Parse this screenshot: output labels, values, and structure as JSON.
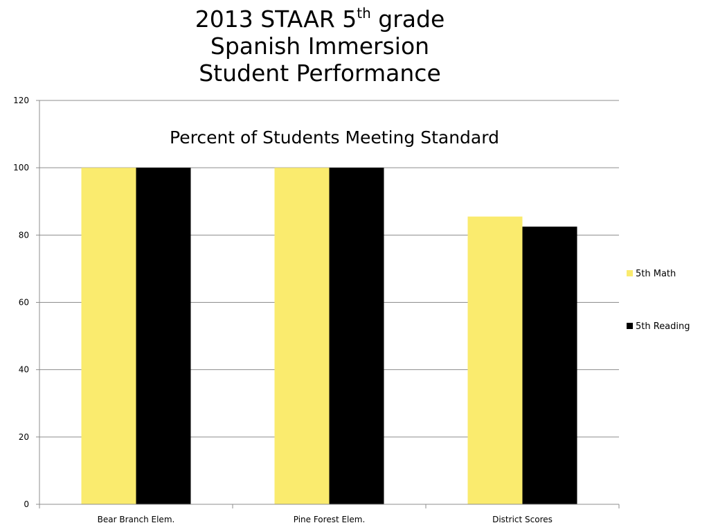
{
  "slide": {
    "title_line1_prefix": "2013 STAAR 5",
    "title_line1_sup": "th",
    "title_line1_suffix": " grade",
    "title_line2": "Spanish Immersion",
    "title_line3": "Student Performance"
  },
  "chart_data": {
    "type": "bar",
    "title": "Percent of Students Meeting Standard",
    "categories": [
      "Bear Branch Elem.",
      "Pine Forest Elem.",
      "District Scores"
    ],
    "series": [
      {
        "name": "5th Math",
        "values": [
          100,
          100,
          85.5
        ],
        "color": "#FAEB6E"
      },
      {
        "name": "5th Reading",
        "values": [
          100,
          100,
          82.5
        ],
        "color": "#000000"
      }
    ],
    "xlabel": "",
    "ylabel": "",
    "ylim": [
      0,
      120
    ],
    "yticks": [
      0,
      20,
      40,
      60,
      80,
      100,
      120
    ],
    "grid": true,
    "legend_position": "right"
  }
}
